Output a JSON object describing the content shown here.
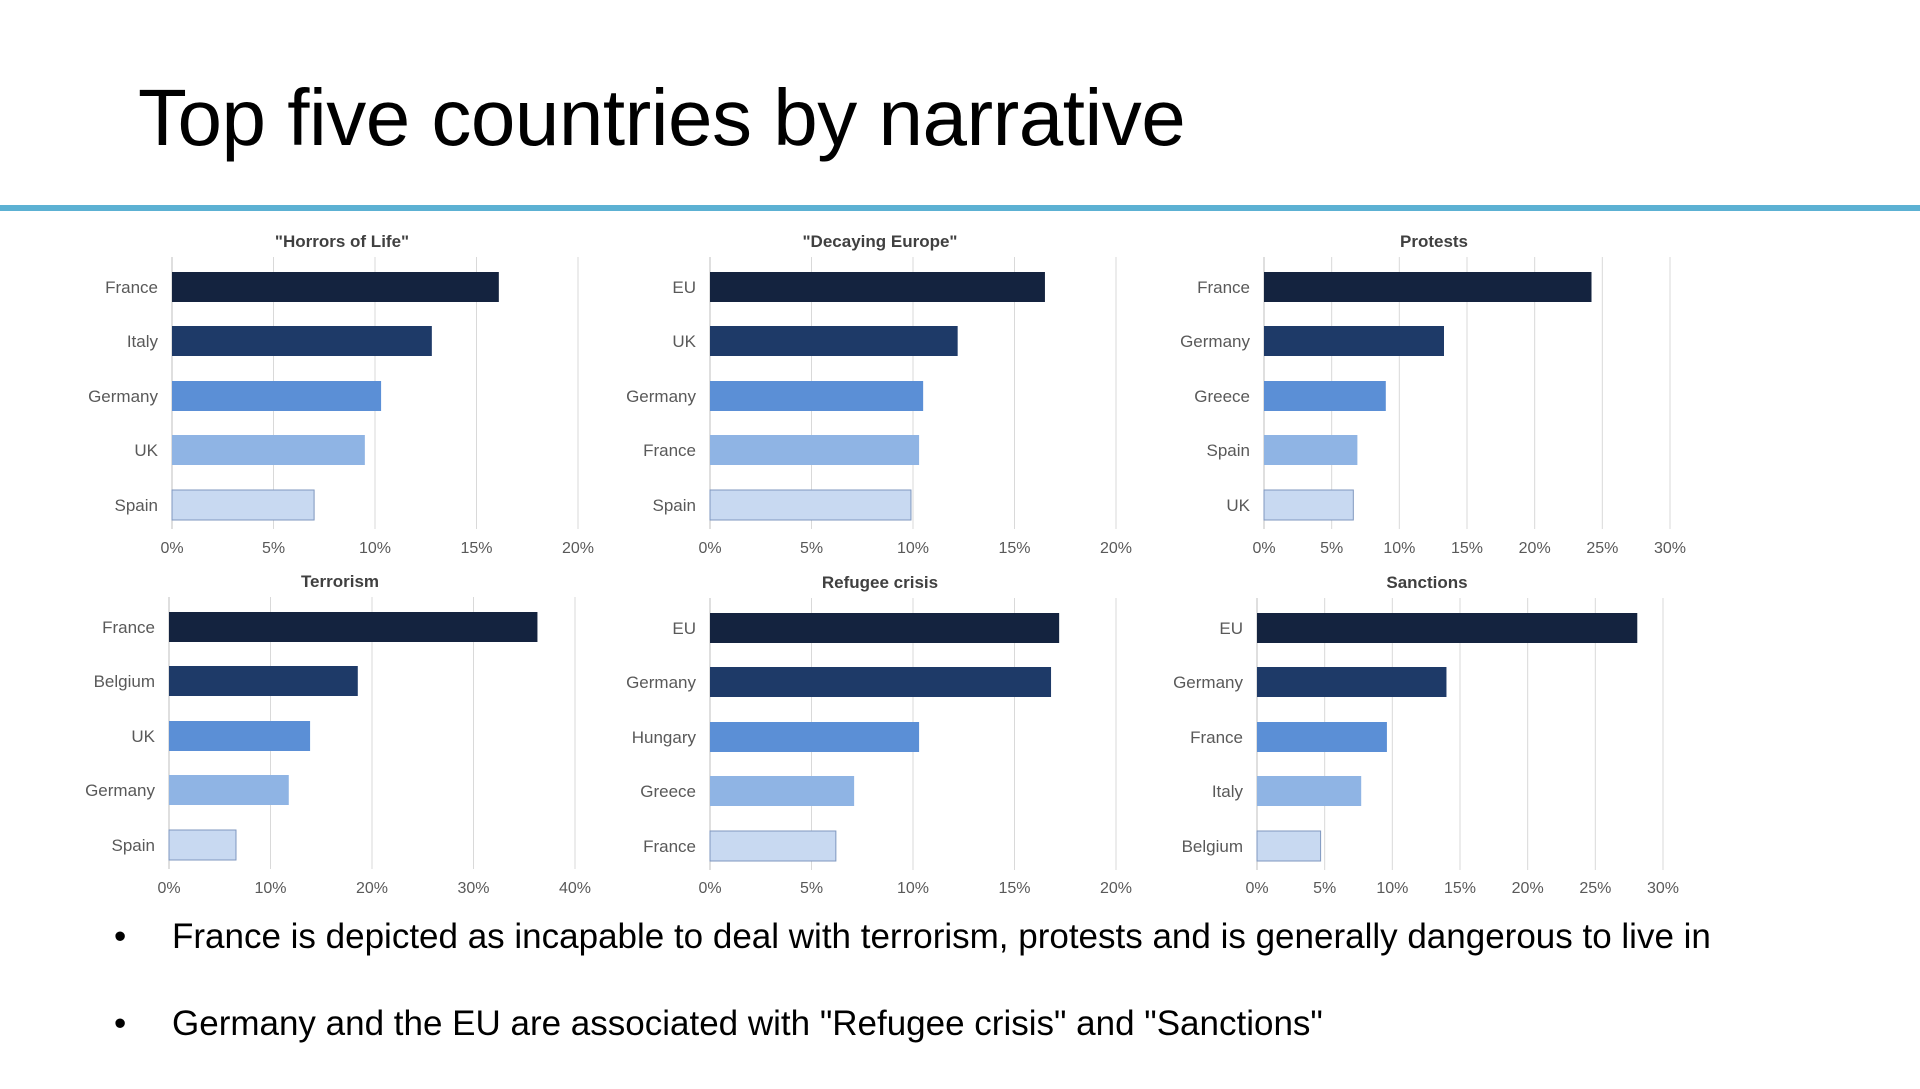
{
  "slide": {
    "title": "Top five countries by narrative",
    "bullets": [
      "France is depicted as incapable to deal with terrorism, protests and is generally dangerous to live in",
      "Germany and the EU are associated with \"Refugee crisis\" and \"Sanctions\""
    ],
    "bullet_symbol": "•"
  },
  "colors": {
    "accent_rule": "#5cb1d3",
    "bar_shades": [
      "#14233f",
      "#1e3a68",
      "#5b8fd6",
      "#8fb4e4",
      "#c8d9f1"
    ]
  },
  "chart_data": [
    {
      "type": "bar",
      "orientation": "horizontal",
      "title": "\"Horrors of Life\"",
      "categories": [
        "France",
        "Italy",
        "Germany",
        "UK",
        "Spain"
      ],
      "values": [
        16.1,
        12.8,
        10.3,
        9.5,
        7.0
      ],
      "xlim": [
        0,
        20
      ],
      "xticks": [
        0,
        5,
        10,
        15,
        20
      ],
      "tick_labels": [
        "0%",
        "5%",
        "10%",
        "15%",
        "20%"
      ],
      "grid": true
    },
    {
      "type": "bar",
      "orientation": "horizontal",
      "title": "\"Decaying Europe\"",
      "categories": [
        "EU",
        "UK",
        "Germany",
        "France",
        "Spain"
      ],
      "values": [
        16.5,
        12.2,
        10.5,
        10.3,
        9.9
      ],
      "xlim": [
        0,
        20
      ],
      "xticks": [
        0,
        5,
        10,
        15,
        20
      ],
      "tick_labels": [
        "0%",
        "5%",
        "10%",
        "15%",
        "20%"
      ],
      "grid": true
    },
    {
      "type": "bar",
      "orientation": "horizontal",
      "title": "Protests",
      "categories": [
        "France",
        "Germany",
        "Greece",
        "Spain",
        "UK"
      ],
      "values": [
        24.2,
        13.3,
        9.0,
        6.9,
        6.6
      ],
      "xlim": [
        0,
        30
      ],
      "xticks": [
        0,
        5,
        10,
        15,
        20,
        25,
        30
      ],
      "tick_labels": [
        "0%",
        "5%",
        "10%",
        "15%",
        "20%",
        "25%",
        "30%"
      ],
      "grid": true
    },
    {
      "type": "bar",
      "orientation": "horizontal",
      "title": "Terrorism",
      "categories": [
        "France",
        "Belgium",
        "UK",
        "Germany",
        "Spain"
      ],
      "values": [
        36.3,
        18.6,
        13.9,
        11.8,
        6.6
      ],
      "xlim": [
        0,
        40
      ],
      "xticks": [
        0,
        10,
        20,
        30,
        40
      ],
      "tick_labels": [
        "0%",
        "10%",
        "20%",
        "30%",
        "40%"
      ],
      "grid": true
    },
    {
      "type": "bar",
      "orientation": "horizontal",
      "title": "Refugee crisis",
      "categories": [
        "EU",
        "Germany",
        "Hungary",
        "Greece",
        "France"
      ],
      "values": [
        17.2,
        16.8,
        10.3,
        7.1,
        6.2
      ],
      "xlim": [
        0,
        20
      ],
      "xticks": [
        0,
        5,
        10,
        15,
        20
      ],
      "tick_labels": [
        "0%",
        "5%",
        "10%",
        "15%",
        "20%"
      ],
      "grid": true
    },
    {
      "type": "bar",
      "orientation": "horizontal",
      "title": "Sanctions",
      "categories": [
        "EU",
        "Germany",
        "France",
        "Italy",
        "Belgium"
      ],
      "values": [
        28.1,
        14.0,
        9.6,
        7.7,
        4.7
      ],
      "xlim": [
        0,
        30
      ],
      "xticks": [
        0,
        5,
        10,
        15,
        20,
        25,
        30
      ],
      "tick_labels": [
        "0%",
        "5%",
        "10%",
        "15%",
        "20%",
        "25%",
        "30%"
      ],
      "grid": true
    }
  ]
}
